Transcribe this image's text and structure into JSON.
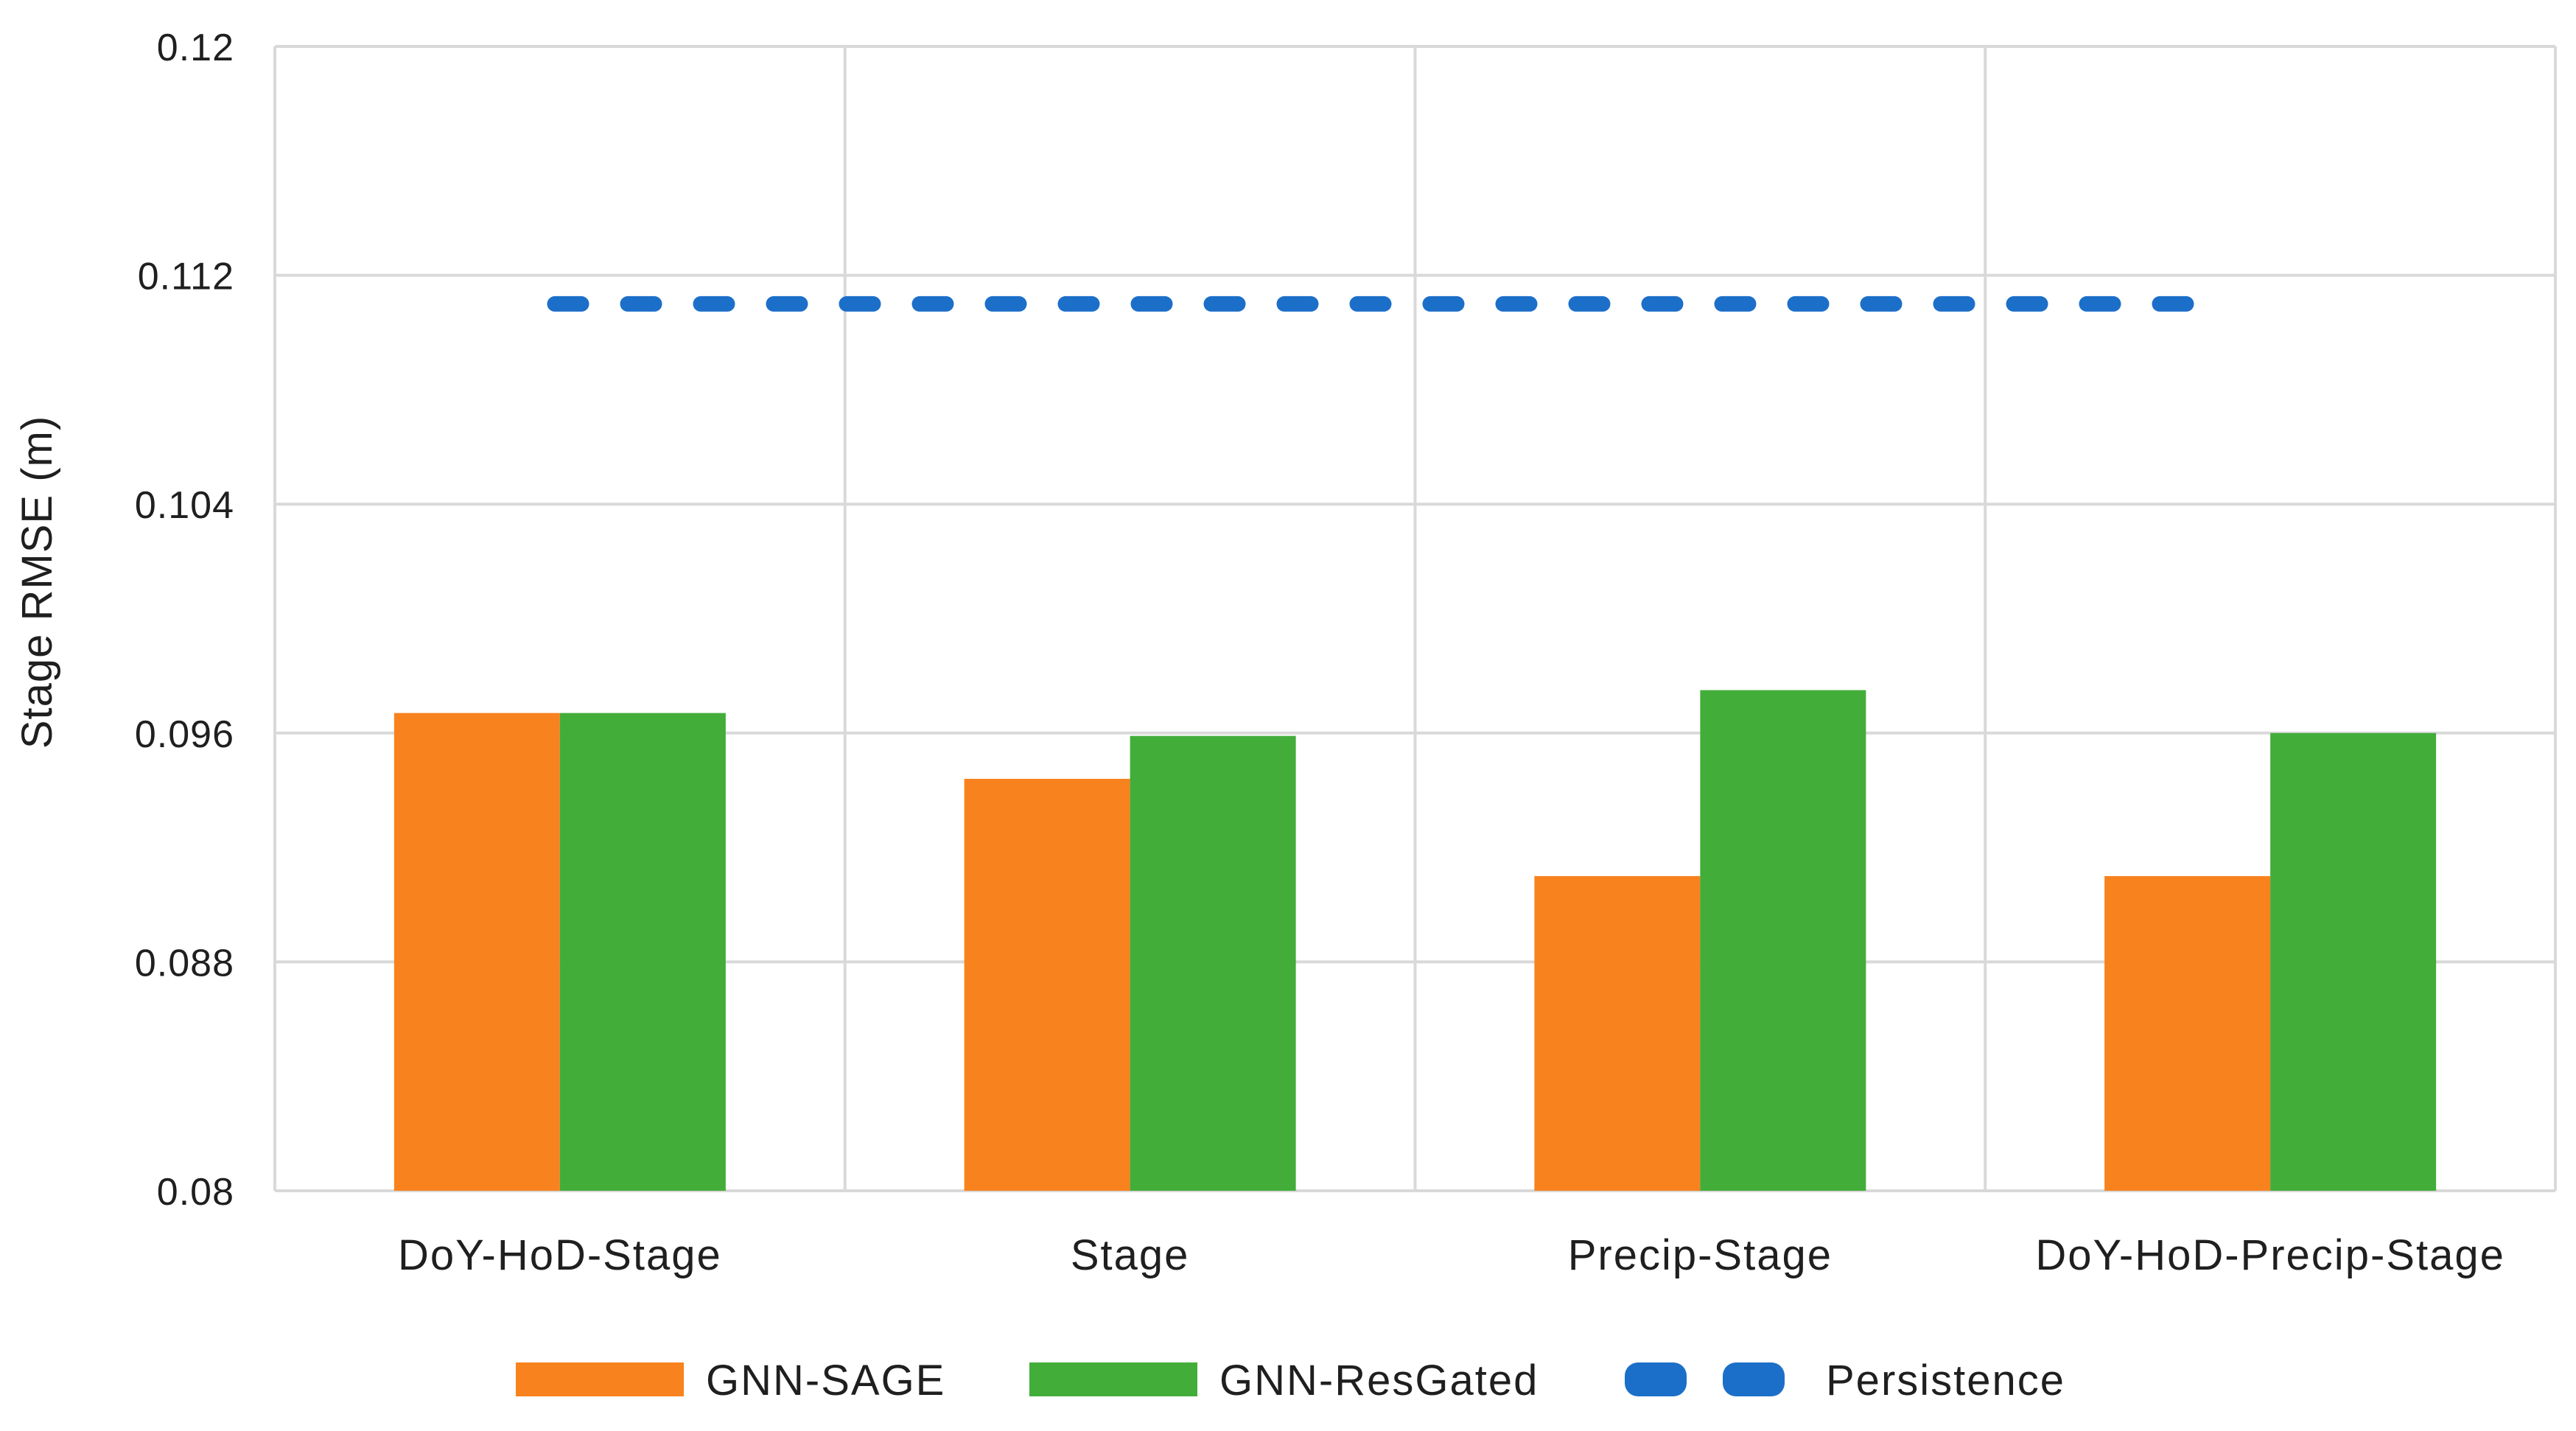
{
  "chart_data": {
    "type": "bar",
    "title": "",
    "xlabel": "",
    "ylabel": "Stage RMSE (m)",
    "categories": [
      "DoY-HoD-Stage",
      "Stage",
      "Precip-Stage",
      "DoY-HoD-Precip-Stage"
    ],
    "series": [
      {
        "name": "GNN-SAGE",
        "color": "#F8821E",
        "values": [
          0.0967,
          0.0944,
          0.091,
          0.091
        ]
      },
      {
        "name": "GNN-ResGated",
        "color": "#43AD3A",
        "values": [
          0.0967,
          0.0959,
          0.0975,
          0.096
        ]
      }
    ],
    "baseline_series": {
      "name": "Persistence",
      "color": "#1C6FC9",
      "style": "dashed",
      "value": 0.111
    },
    "y_axis": {
      "min": 0.08,
      "max": 0.12,
      "tick_step": 0.008,
      "tick_labels": [
        "0.12",
        "0.112",
        "0.104",
        "0.096",
        "0.088",
        "0.08"
      ]
    },
    "grid": true,
    "legend_position": "bottom",
    "gridline_color": "#D9D9D9",
    "text_color": "#1f1f1f"
  }
}
